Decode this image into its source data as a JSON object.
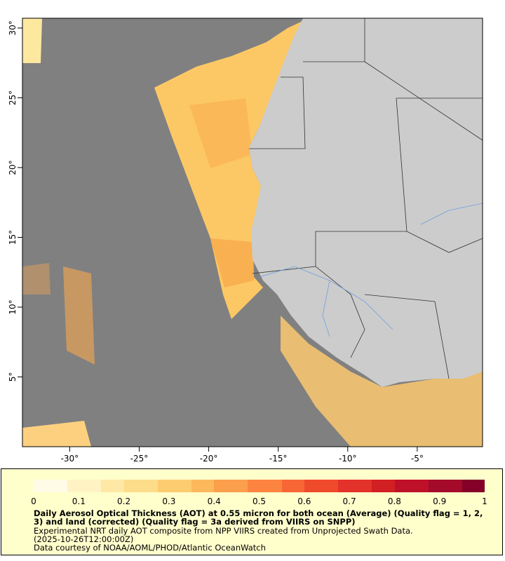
{
  "map": {
    "lon_range": [
      -33.4,
      -0.3
    ],
    "lat_range": [
      0,
      30.7
    ],
    "x_ticks": [
      "-30°",
      "-25°",
      "-20°",
      "-15°",
      "-10°",
      "-5°"
    ],
    "x_tick_values": [
      -30,
      -25,
      -20,
      -15,
      -10,
      -5
    ],
    "y_ticks": [
      "5°",
      "10°",
      "15°",
      "20°",
      "25°",
      "30°"
    ],
    "y_tick_values": [
      5,
      10,
      15,
      20,
      25,
      30
    ],
    "colors": {
      "ocean_nodata": "#808080",
      "land": "#cccccc",
      "rivers": "#6fa0e0",
      "borders": "#333333"
    }
  },
  "legend": {
    "ticks": [
      "0",
      "0.1",
      "0.2",
      "0.3",
      "0.4",
      "0.5",
      "0.6",
      "0.7",
      "0.8",
      "0.9",
      "1"
    ],
    "range": [
      0,
      1
    ],
    "colors": [
      "#fffbe6",
      "#fff3c4",
      "#ffe8a6",
      "#fddc8a",
      "#fdcc70",
      "#fdb85c",
      "#fc9f4c",
      "#fc8440",
      "#f86636",
      "#f04a2c",
      "#e2322a",
      "#d21f24",
      "#be1028",
      "#a40a2a",
      "#840028"
    ],
    "title": "Daily Aerosol Optical Thickness (AOT) at 0.55 micron for both ocean (Average) (Quality flag = 1, 2, 3) and land (corrected) (Quality flag = 3a derived from VIIRS on SNPP)",
    "line1": "Experimental NRT daily AOT composite from NPP VIIRS created from Unprojected Swath Data.",
    "line2": "(2025-10-26T12:00:00Z)",
    "line3": "Data courtesy of NOAA/AOML/PHOD/Atlantic OceanWatch"
  }
}
